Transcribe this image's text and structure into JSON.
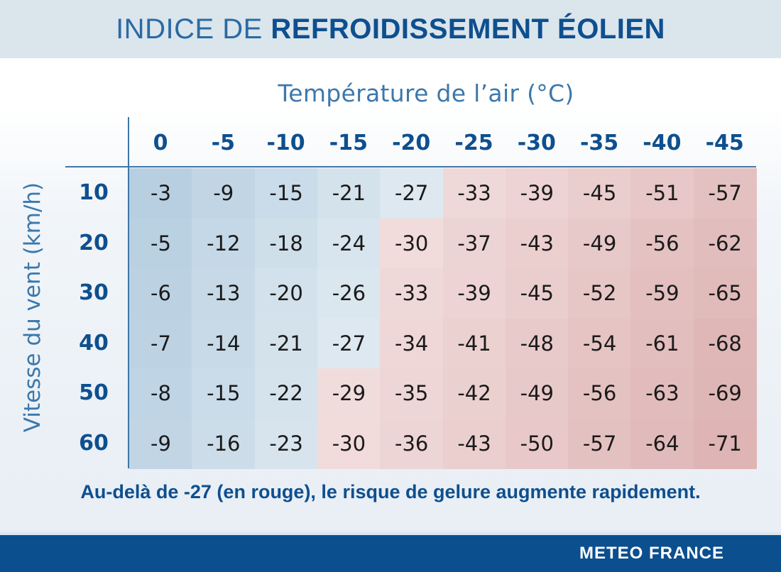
{
  "header": {
    "title_thin": "INDICE DE ",
    "title_bold": "REFROIDISSEMENT ÉOLIEN"
  },
  "axes": {
    "x_label": "Température de l’air (°C)",
    "y_label": "Vitesse du vent (km/h)"
  },
  "note": "Au-delà de -27 (en rouge), le risque de gelure augmente rapidement.",
  "footer": {
    "brand": "METEO FRANCE"
  },
  "colors": {
    "title_blue": "#0e4f8f",
    "axis_label_blue": "#3c78ab",
    "footer_blue": "#0b4f8f",
    "cold_blue_strong": "#b7cfe1",
    "cold_blue_light": "#dde8f0",
    "danger_red_light": "#f2dede",
    "danger_red_strong": "#deb4b4",
    "threshold": -27
  },
  "chart_data": {
    "type": "table",
    "title": "INDICE DE REFROIDISSEMENT ÉOLIEN",
    "xlabel": "Température de l’air (°C)",
    "ylabel": "Vitesse du vent (km/h)",
    "columns": [
      "0",
      "-5",
      "-10",
      "-15",
      "-20",
      "-25",
      "-30",
      "-35",
      "-40",
      "-45"
    ],
    "rows": [
      "10",
      "20",
      "30",
      "40",
      "50",
      "60"
    ],
    "values": [
      [
        -3,
        -9,
        -15,
        -21,
        -27,
        -33,
        -39,
        -45,
        -51,
        -57
      ],
      [
        -5,
        -12,
        -18,
        -24,
        -30,
        -37,
        -43,
        -49,
        -56,
        -62
      ],
      [
        -6,
        -13,
        -20,
        -26,
        -33,
        -39,
        -45,
        -52,
        -59,
        -65
      ],
      [
        -7,
        -14,
        -21,
        -27,
        -34,
        -41,
        -48,
        -54,
        -61,
        -68
      ],
      [
        -8,
        -15,
        -22,
        -29,
        -35,
        -42,
        -49,
        -56,
        -63,
        -69
      ],
      [
        -9,
        -16,
        -23,
        -30,
        -36,
        -43,
        -50,
        -57,
        -64,
        -71
      ]
    ],
    "color_rule": "blue shades for values >= -27, red shades for values < -27",
    "annotation": "Au-delà de -27 (en rouge), le risque de gelure augmente rapidement."
  }
}
